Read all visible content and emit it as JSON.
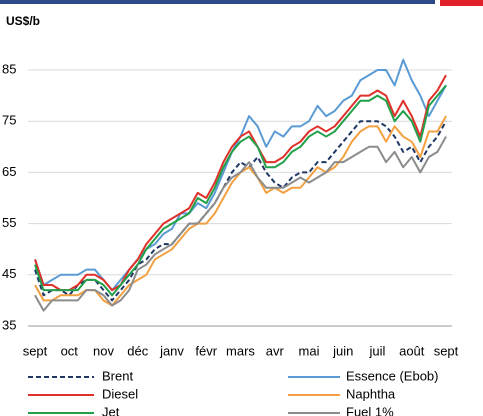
{
  "chart_data": {
    "type": "line",
    "ylabel": "US$/b",
    "categories": [
      "sept",
      null,
      null,
      null,
      "oct",
      null,
      null,
      null,
      "nov",
      null,
      null,
      null,
      "déc",
      null,
      null,
      null,
      "janv",
      null,
      null,
      null,
      "févr",
      null,
      null,
      null,
      "mars",
      null,
      null,
      null,
      "avr",
      null,
      null,
      null,
      "mai",
      null,
      null,
      null,
      "juin",
      null,
      null,
      null,
      "juil",
      null,
      null,
      null,
      "août",
      null,
      null,
      null,
      "sept"
    ],
    "ylim": [
      35,
      88
    ],
    "yticks": [
      35,
      45,
      55,
      65,
      75,
      85
    ],
    "grid": true,
    "series": [
      {
        "name": "Brent",
        "color": "#1f3864",
        "line_style": "dashed",
        "values": [
          46,
          41,
          42,
          42,
          41,
          43,
          44,
          44,
          42,
          40,
          42,
          44,
          47,
          48,
          50,
          51,
          51,
          53,
          55,
          55,
          57,
          59,
          62,
          65,
          67,
          66,
          68,
          65,
          63,
          62,
          64,
          65,
          65,
          67,
          67,
          69,
          71,
          73,
          75,
          75,
          75,
          74,
          72,
          69,
          70,
          67,
          70,
          72,
          75
        ]
      },
      {
        "name": "Essence (Ebob)",
        "color": "#5b9bd5",
        "line_style": "solid",
        "values": [
          48,
          43,
          44,
          45,
          45,
          45,
          46,
          46,
          44,
          42,
          44,
          46,
          48,
          50,
          51,
          53,
          54,
          57,
          57,
          59,
          58,
          61,
          65,
          69,
          72,
          76,
          74,
          70,
          73,
          72,
          74,
          74,
          75,
          78,
          76,
          77,
          79,
          80,
          83,
          84,
          85,
          85,
          82,
          87,
          83,
          80,
          76,
          79,
          82
        ]
      },
      {
        "name": "Diesel",
        "color": "#e0302a",
        "line_style": "solid",
        "values": [
          48,
          43,
          43,
          42,
          42,
          43,
          45,
          45,
          44,
          42,
          43,
          46,
          48,
          51,
          53,
          55,
          56,
          57,
          58,
          61,
          60,
          63,
          67,
          70,
          72,
          73,
          70,
          67,
          67,
          68,
          70,
          71,
          73,
          74,
          73,
          74,
          76,
          78,
          80,
          80,
          81,
          80,
          76,
          79,
          76,
          72,
          79,
          81,
          84
        ]
      },
      {
        "name": "Naphtha",
        "color": "#f4a040",
        "line_style": "solid",
        "values": [
          43,
          40,
          40,
          41,
          41,
          41,
          42,
          42,
          40,
          39,
          41,
          43,
          44,
          45,
          48,
          49,
          50,
          52,
          54,
          55,
          55,
          57,
          60,
          63,
          65,
          66,
          64,
          61,
          62,
          61,
          62,
          62,
          64,
          66,
          65,
          66,
          68,
          71,
          73,
          74,
          74,
          71,
          74,
          72,
          71,
          68,
          73,
          73,
          76
        ]
      },
      {
        "name": "Jet",
        "color": "#23a04a",
        "line_style": "solid",
        "values": [
          47,
          42,
          42,
          42,
          42,
          42,
          44,
          44,
          43,
          41,
          43,
          45,
          47,
          50,
          52,
          54,
          55,
          56,
          57,
          60,
          59,
          62,
          66,
          69,
          71,
          72,
          70,
          66,
          66,
          67,
          69,
          70,
          72,
          73,
          72,
          73,
          75,
          77,
          79,
          79,
          80,
          79,
          75,
          77,
          75,
          71,
          78,
          80,
          82
        ]
      },
      {
        "name": "Fuel 1%",
        "color": "#8c8c8c",
        "line_style": "solid",
        "values": [
          41,
          38,
          40,
          40,
          40,
          40,
          42,
          42,
          41,
          39,
          40,
          42,
          46,
          47,
          49,
          50,
          51,
          53,
          55,
          55,
          57,
          59,
          62,
          64,
          65,
          67,
          64,
          62,
          62,
          62,
          63,
          64,
          63,
          64,
          65,
          67,
          67,
          68,
          69,
          70,
          70,
          67,
          69,
          66,
          68,
          65,
          68,
          69,
          72
        ]
      }
    ]
  }
}
